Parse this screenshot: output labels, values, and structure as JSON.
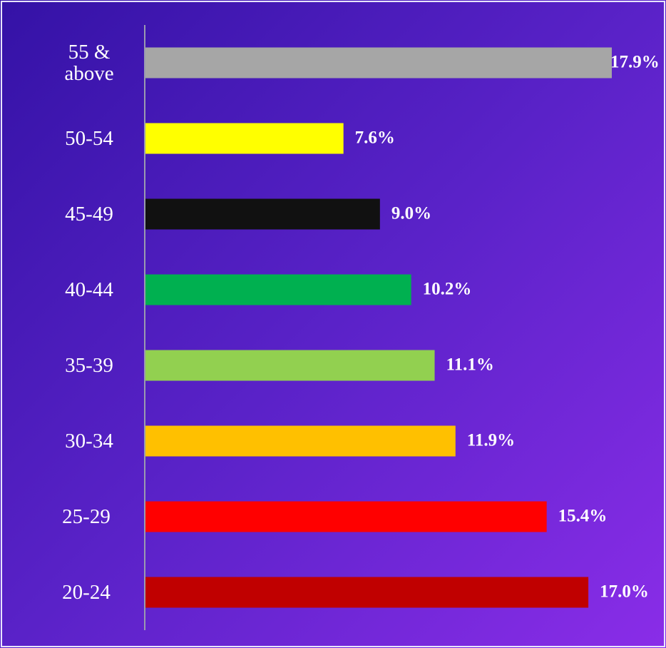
{
  "chart_data": {
    "type": "bar",
    "orientation": "horizontal",
    "categories": [
      "55 & above",
      "50-54",
      "45-49",
      "40-44",
      "35-39",
      "30-34",
      "25-29",
      "20-24"
    ],
    "values": [
      17.9,
      7.6,
      9.0,
      10.2,
      11.1,
      11.9,
      15.4,
      17.0
    ],
    "value_labels": [
      "17.9%",
      "7.6%",
      "9.0%",
      "10.2%",
      "11.1%",
      "11.9%",
      "15.4%",
      "17.0%"
    ],
    "colors": [
      "#a6a6a6",
      "#ffff00",
      "#111111",
      "#00b050",
      "#92d050",
      "#ffc000",
      "#ff0000",
      "#c00000"
    ],
    "xlim": [
      0,
      17.9
    ]
  }
}
